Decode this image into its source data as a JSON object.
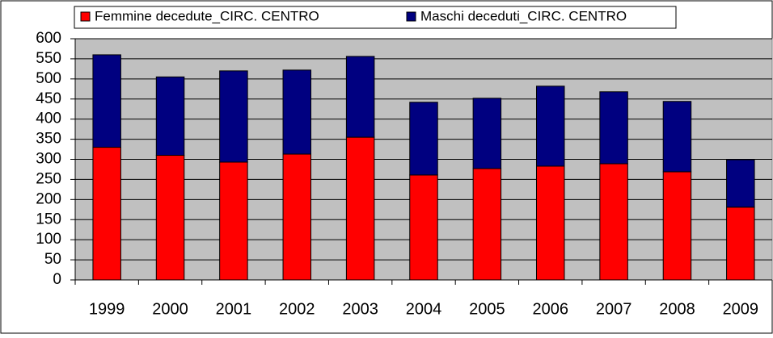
{
  "chart_data": {
    "type": "stacked_bar",
    "categories": [
      "1999",
      "2000",
      "2001",
      "2002",
      "2003",
      "2004",
      "2005",
      "2006",
      "2007",
      "2008",
      "2009"
    ],
    "series": [
      {
        "name": "Femmine decedute_CIRC. CENTRO",
        "color": "#ff0000",
        "values": [
          330,
          310,
          293,
          313,
          355,
          261,
          277,
          283,
          289,
          269,
          181
        ]
      },
      {
        "name": "Maschi deceduti_CIRC. CENTRO",
        "color": "#000080",
        "values": [
          230,
          195,
          227,
          209,
          201,
          181,
          175,
          199,
          179,
          175,
          118
        ]
      }
    ],
    "ylim": [
      0,
      600
    ],
    "yticks": [
      0,
      50,
      100,
      150,
      200,
      250,
      300,
      350,
      400,
      450,
      500,
      550,
      600
    ],
    "grid": true,
    "legend": "top"
  }
}
